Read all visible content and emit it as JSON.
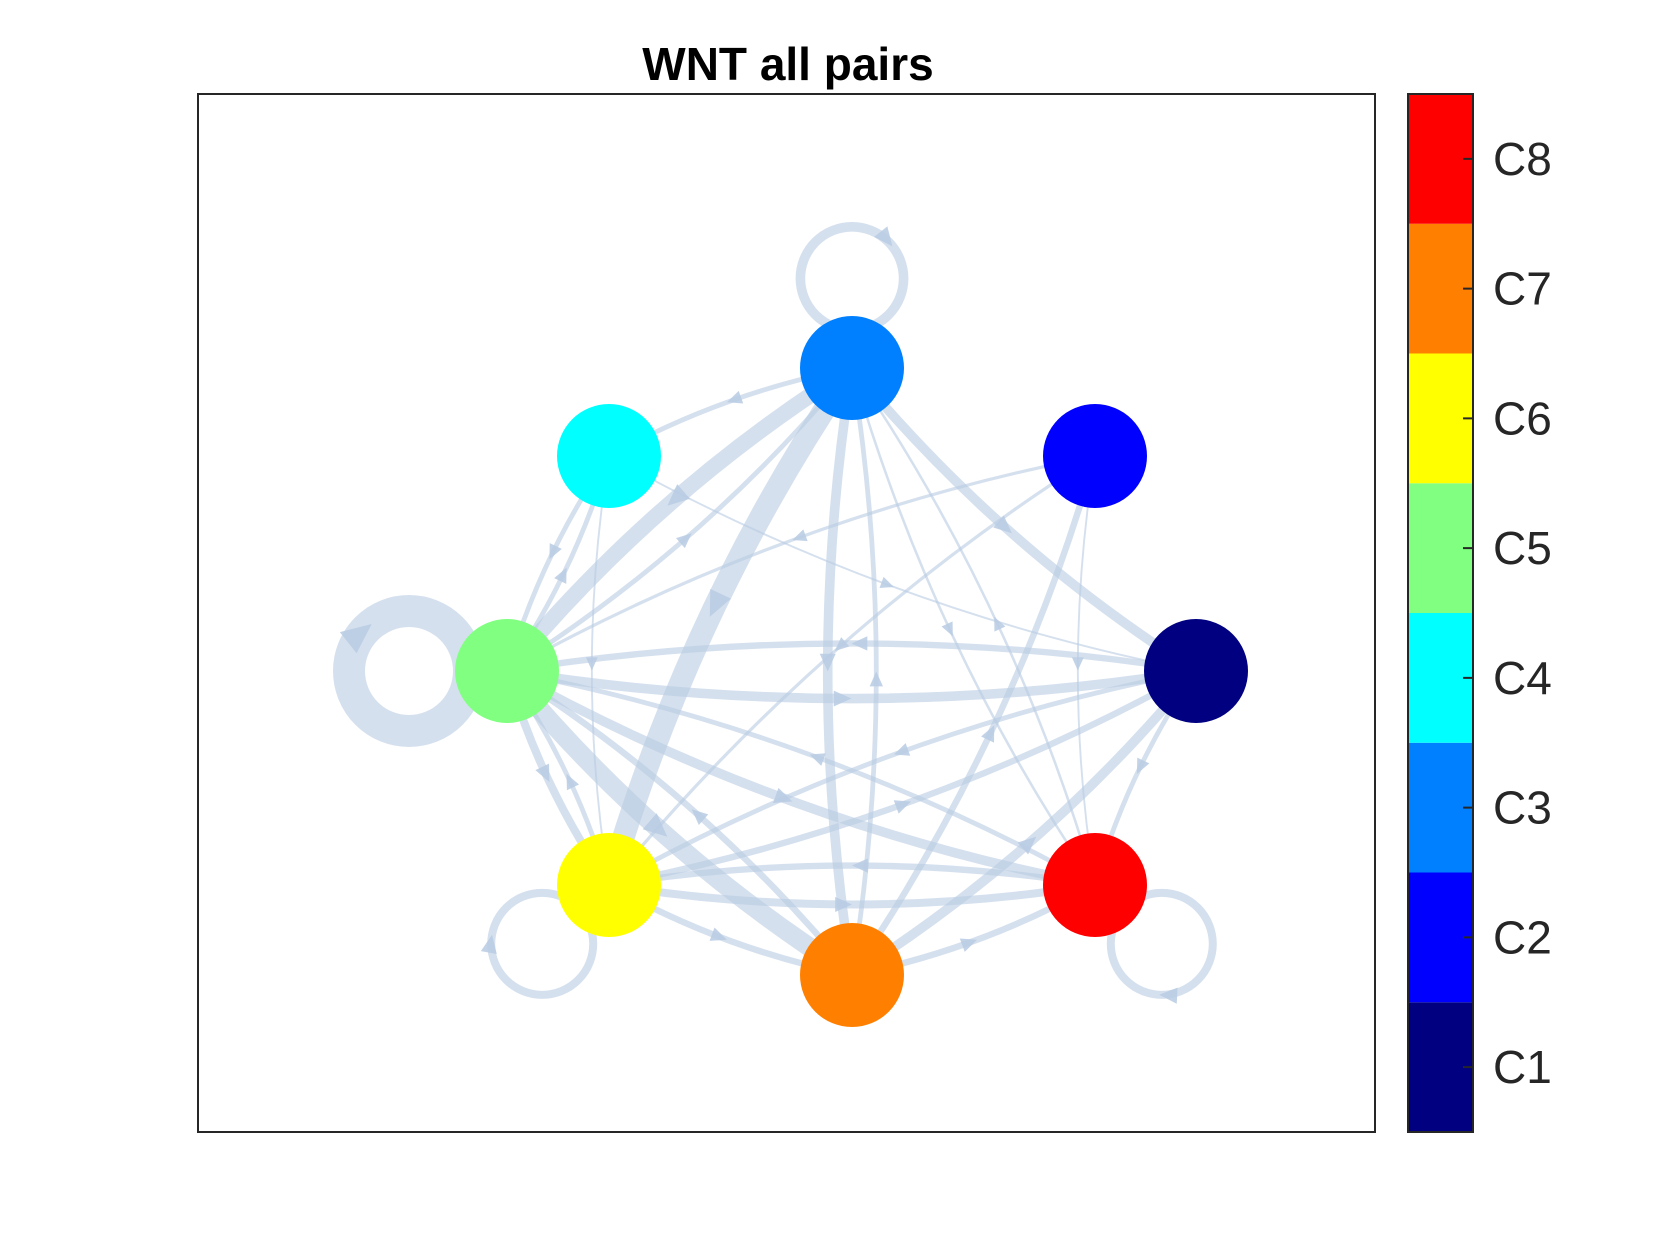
{
  "figure": {
    "title": "WNT all pairs"
  },
  "colors": {
    "edge": "#b9cbe3",
    "frame": "#262626"
  },
  "nodes": [
    {
      "id": "C1",
      "color": "#000080"
    },
    {
      "id": "C2",
      "color": "#0000ff"
    },
    {
      "id": "C3",
      "color": "#0080ff"
    },
    {
      "id": "C4",
      "color": "#00ffff"
    },
    {
      "id": "C5",
      "color": "#80ff80"
    },
    {
      "id": "C6",
      "color": "#ffff00"
    },
    {
      "id": "C7",
      "color": "#ff8000"
    },
    {
      "id": "C8",
      "color": "#ff0000"
    }
  ],
  "edges": [
    {
      "from": "C5",
      "to": "C5",
      "weight": 10
    },
    {
      "from": "C3",
      "to": "C3",
      "weight": 3
    },
    {
      "from": "C6",
      "to": "C6",
      "weight": 2.5
    },
    {
      "from": "C8",
      "to": "C8",
      "weight": 2.5
    },
    {
      "from": "C3",
      "to": "C6",
      "weight": 7
    },
    {
      "from": "C3",
      "to": "C5",
      "weight": 5
    },
    {
      "from": "C3",
      "to": "C7",
      "weight": 3
    },
    {
      "from": "C3",
      "to": "C1",
      "weight": 3
    },
    {
      "from": "C3",
      "to": "C4",
      "weight": 1.5
    },
    {
      "from": "C3",
      "to": "C8",
      "weight": 0.8
    },
    {
      "from": "C5",
      "to": "C1",
      "weight": 3
    },
    {
      "from": "C5",
      "to": "C7",
      "weight": 6
    },
    {
      "from": "C5",
      "to": "C8",
      "weight": 3
    },
    {
      "from": "C5",
      "to": "C6",
      "weight": 2.5
    },
    {
      "from": "C5",
      "to": "C4",
      "weight": 1.5
    },
    {
      "from": "C5",
      "to": "C3",
      "weight": 1.5
    },
    {
      "from": "C6",
      "to": "C8",
      "weight": 2.5
    },
    {
      "from": "C6",
      "to": "C1",
      "weight": 2
    },
    {
      "from": "C6",
      "to": "C7",
      "weight": 2
    },
    {
      "from": "C6",
      "to": "C5",
      "weight": 1.5
    },
    {
      "from": "C7",
      "to": "C1",
      "weight": 3
    },
    {
      "from": "C7",
      "to": "C2",
      "weight": 2
    },
    {
      "from": "C7",
      "to": "C8",
      "weight": 2
    },
    {
      "from": "C7",
      "to": "C5",
      "weight": 2
    },
    {
      "from": "C7",
      "to": "C3",
      "weight": 1.5
    },
    {
      "from": "C8",
      "to": "C6",
      "weight": 2
    },
    {
      "from": "C8",
      "to": "C5",
      "weight": 1.5
    },
    {
      "from": "C8",
      "to": "C3",
      "weight": 0.8
    },
    {
      "from": "C1",
      "to": "C8",
      "weight": 1.5
    },
    {
      "from": "C1",
      "to": "C5",
      "weight": 2
    },
    {
      "from": "C1",
      "to": "C6",
      "weight": 1.5
    },
    {
      "from": "C2",
      "to": "C5",
      "weight": 1
    },
    {
      "from": "C2",
      "to": "C6",
      "weight": 1
    },
    {
      "from": "C2",
      "to": "C8",
      "weight": 0.6
    },
    {
      "from": "C4",
      "to": "C6",
      "weight": 0.6
    },
    {
      "from": "C4",
      "to": "C1",
      "weight": 0.6
    },
    {
      "from": "C4",
      "to": "C5",
      "weight": 1.5
    }
  ],
  "colorbar": {
    "labels": [
      "C1",
      "C2",
      "C3",
      "C4",
      "C5",
      "C6",
      "C7",
      "C8"
    ],
    "colors": [
      "#000080",
      "#0000ff",
      "#0080ff",
      "#00ffff",
      "#80ff80",
      "#ffff00",
      "#ff8000",
      "#ff0000"
    ]
  }
}
